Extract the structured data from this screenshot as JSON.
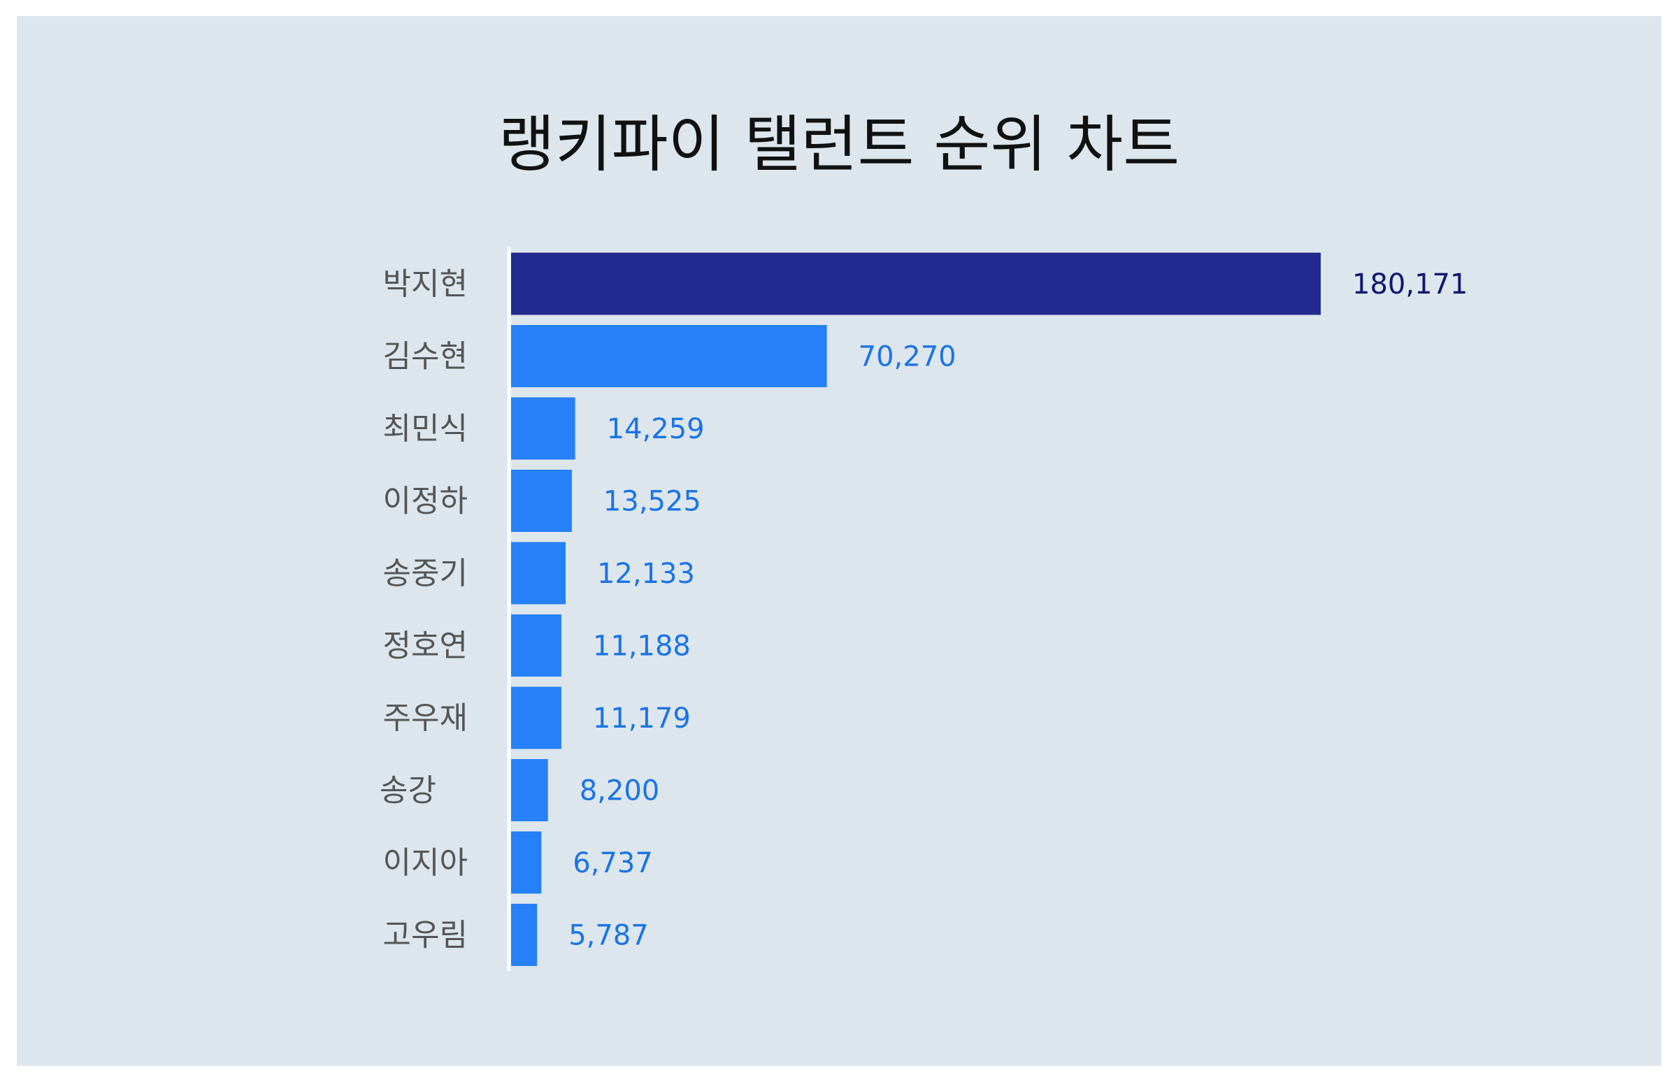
{
  "chart_data": {
    "type": "bar",
    "orientation": "horizontal",
    "title": "랭키파이 탤런트 순위 차트",
    "categories": [
      "박지현",
      "김수현",
      "최민식",
      "이정하",
      "송중기",
      "정호연",
      "주우재",
      "송강",
      "이지아",
      "고우림"
    ],
    "values": [
      180171,
      70270,
      14259,
      13525,
      12133,
      11188,
      11179,
      8200,
      6737,
      5787
    ],
    "value_labels": [
      "180,171",
      "70,270",
      "14,259",
      "13,525",
      "12,133",
      "11,188",
      "11,179",
      "8,200",
      "6,737",
      "5,787"
    ],
    "xlabel": "",
    "ylabel": "",
    "grid": false,
    "legend": "none",
    "colors": {
      "highlight_bar": "#212a8f",
      "highlight_label": "#0f1670",
      "bar": "#2680f7",
      "label": "#1a73e8",
      "background": "#dce6ec"
    }
  }
}
